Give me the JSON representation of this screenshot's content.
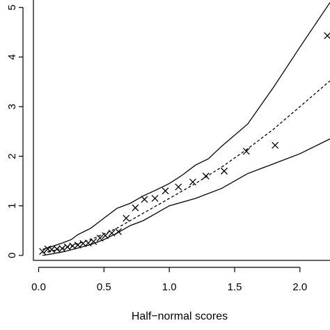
{
  "chart_data": {
    "type": "scatter",
    "title": "",
    "xlabel": "Half−normal scores",
    "ylabel": "",
    "xlim": [
      -0.04,
      2.23
    ],
    "ylim": [
      -0.1,
      5.15
    ],
    "x_ticks": [
      0.0,
      0.5,
      1.0,
      1.5,
      2.0
    ],
    "x_tick_labels": [
      "0.0",
      "0.5",
      "1.0",
      "1.5",
      "2.0"
    ],
    "y_ticks": [
      0,
      1,
      2,
      3,
      4,
      5
    ],
    "y_tick_labels": [
      "0",
      "1",
      "2",
      "3",
      "4",
      "5"
    ],
    "grid": false,
    "legend": "none",
    "series": [
      {
        "style": "points-x",
        "color": "#000000",
        "x": [
          0.03,
          0.07,
          0.1,
          0.14,
          0.18,
          0.22,
          0.26,
          0.3,
          0.34,
          0.38,
          0.42,
          0.47,
          0.51,
          0.56,
          0.61,
          0.67,
          0.74,
          0.81,
          0.89,
          0.97,
          1.07,
          1.18,
          1.28,
          1.42,
          1.59,
          1.81,
          2.21
        ],
        "y": [
          0.08,
          0.13,
          0.12,
          0.13,
          0.14,
          0.17,
          0.19,
          0.21,
          0.24,
          0.25,
          0.28,
          0.35,
          0.4,
          0.45,
          0.48,
          0.75,
          0.96,
          1.13,
          1.15,
          1.3,
          1.38,
          1.48,
          1.6,
          1.7,
          2.1,
          2.22,
          4.43
        ]
      },
      {
        "style": "dashed-line",
        "color": "#000000",
        "x": [
          0.03,
          0.2,
          0.4,
          0.6,
          0.8,
          1.0,
          1.2,
          1.4,
          1.6,
          1.8,
          2.0,
          2.23
        ],
        "y": [
          0.05,
          0.15,
          0.32,
          0.55,
          0.85,
          1.15,
          1.45,
          1.78,
          2.15,
          2.55,
          3.0,
          3.52
        ]
      },
      {
        "style": "solid-line",
        "color": "#000000",
        "x": [
          0.03,
          0.1,
          0.18,
          0.25,
          0.3,
          0.4,
          0.5,
          0.6,
          0.7,
          0.8,
          0.9,
          1.0,
          1.1,
          1.2,
          1.3,
          1.4,
          1.6,
          1.8,
          2.0,
          2.23
        ],
        "y": [
          0.12,
          0.18,
          0.25,
          0.32,
          0.42,
          0.55,
          0.75,
          0.95,
          1.05,
          1.2,
          1.32,
          1.45,
          1.62,
          1.82,
          1.95,
          2.2,
          2.65,
          3.4,
          4.2,
          5.1
        ]
      },
      {
        "style": "solid-line",
        "color": "#000000",
        "x": [
          0.03,
          0.1,
          0.2,
          0.3,
          0.4,
          0.5,
          0.6,
          0.7,
          0.8,
          0.9,
          1.0,
          1.2,
          1.4,
          1.6,
          1.8,
          2.0,
          2.23
        ],
        "y": [
          0.0,
          0.03,
          0.08,
          0.15,
          0.22,
          0.32,
          0.45,
          0.6,
          0.7,
          0.85,
          1.0,
          1.15,
          1.35,
          1.65,
          1.85,
          2.05,
          2.35
        ]
      }
    ]
  }
}
